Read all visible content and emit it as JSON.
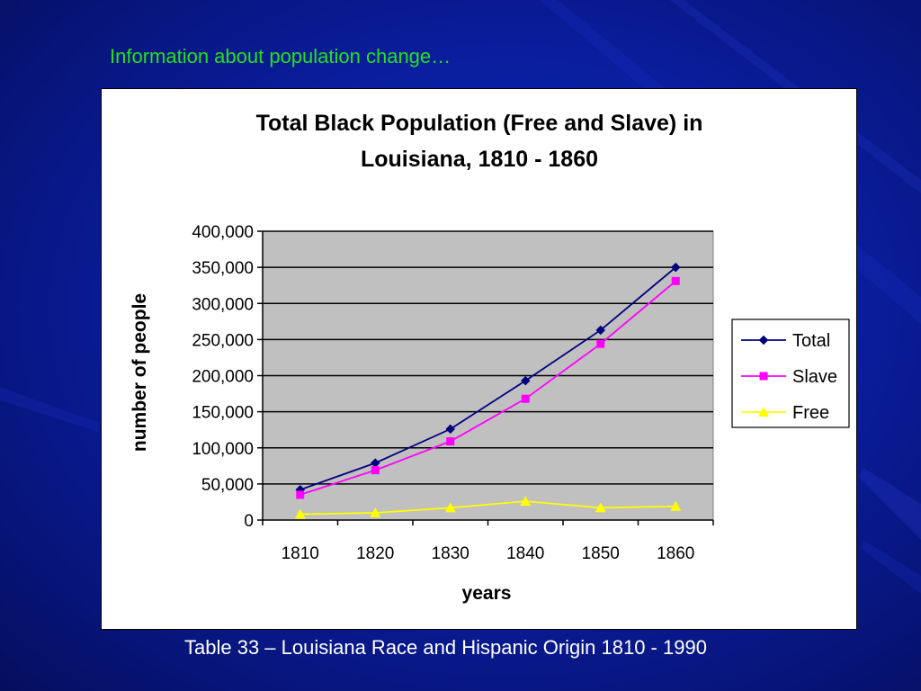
{
  "slide": {
    "heading": "Information about population change…",
    "caption": "Table 33 – Louisiana Race and Hispanic Origin 1810 - 1990"
  },
  "colors": {
    "background": "#0a1ea0",
    "heading": "#22e21f",
    "plot_area": "#c0c0c0",
    "total": "#000080",
    "slave": "#ff00ff",
    "free": "#ffff00"
  },
  "chart_data": {
    "type": "line",
    "title_lines": [
      "Total Black Population (Free and Slave) in",
      "Louisiana, 1810 - 1860"
    ],
    "xlabel": "years",
    "ylabel": "number of people",
    "categories": [
      "1810",
      "1820",
      "1830",
      "1840",
      "1850",
      "1860"
    ],
    "ylim": [
      0,
      400000
    ],
    "yticks": [
      0,
      50000,
      100000,
      150000,
      200000,
      250000,
      300000,
      350000,
      400000
    ],
    "ytick_labels": [
      "0",
      "50,000",
      "100,000",
      "150,000",
      "200,000",
      "250,000",
      "300,000",
      "350,000",
      "400,000"
    ],
    "grid": true,
    "legend_position": "right",
    "series": [
      {
        "name": "Total",
        "color": "#000080",
        "marker": "diamond",
        "values": [
          42000,
          79000,
          126000,
          193000,
          263000,
          350000
        ]
      },
      {
        "name": "Slave",
        "color": "#ff00ff",
        "marker": "square",
        "values": [
          35000,
          69000,
          109000,
          168000,
          244000,
          331000
        ]
      },
      {
        "name": "Free",
        "color": "#ffff00",
        "marker": "triangle",
        "values": [
          8000,
          10000,
          17000,
          26000,
          17000,
          19000
        ]
      }
    ]
  }
}
